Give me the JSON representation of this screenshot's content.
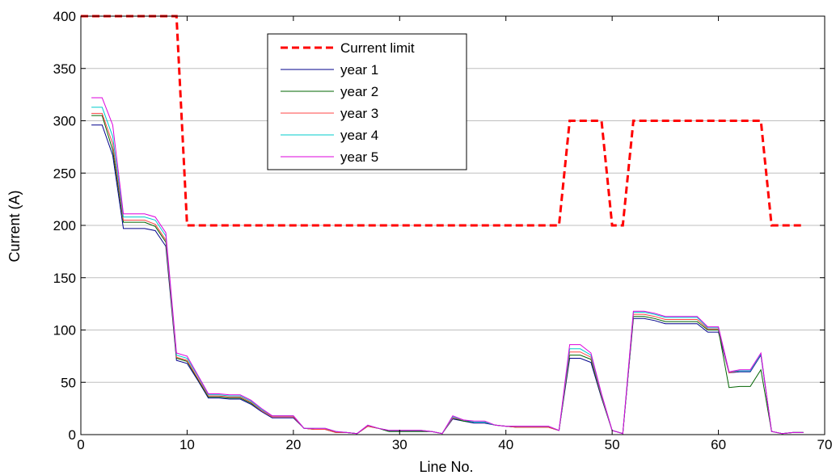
{
  "chart_data": {
    "type": "line",
    "title": "",
    "xlabel": "Line No.",
    "ylabel": "Current (A)",
    "xlim": [
      0,
      70
    ],
    "ylim": [
      0,
      400
    ],
    "xticks": [
      "0",
      "10",
      "20",
      "30",
      "40",
      "50",
      "60",
      "70"
    ],
    "yticks": [
      "0",
      "50",
      "100",
      "150",
      "200",
      "250",
      "300",
      "350",
      "400"
    ],
    "grid": "horizontal",
    "legend_position": "top-center",
    "x": [
      1,
      2,
      3,
      4,
      5,
      6,
      7,
      8,
      9,
      10,
      11,
      12,
      13,
      14,
      15,
      16,
      17,
      18,
      19,
      20,
      21,
      22,
      23,
      24,
      25,
      26,
      27,
      28,
      29,
      30,
      31,
      32,
      33,
      34,
      35,
      36,
      37,
      38,
      39,
      40,
      41,
      42,
      43,
      44,
      45,
      46,
      47,
      48,
      49,
      50,
      51,
      52,
      53,
      54,
      55,
      56,
      57,
      58,
      59,
      60,
      61,
      62,
      63,
      64,
      65,
      66,
      67,
      68
    ],
    "series": [
      {
        "name": "Current limit",
        "color": "#ff0000",
        "dashed": true,
        "points": [
          [
            0,
            400
          ],
          [
            9,
            400
          ],
          [
            10,
            200
          ],
          [
            45,
            200
          ],
          [
            46,
            300
          ],
          [
            49,
            300
          ],
          [
            50,
            200
          ],
          [
            51,
            200
          ],
          [
            52,
            300
          ],
          [
            64,
            300
          ],
          [
            65,
            200
          ],
          [
            68,
            200
          ]
        ]
      },
      {
        "name": "year 1",
        "color": "#00008b",
        "values": [
          296,
          296,
          267,
          197,
          197,
          197,
          195,
          180,
          71,
          68,
          52,
          35,
          35,
          34,
          34,
          29,
          22,
          16,
          16,
          16,
          6,
          5,
          5,
          2,
          2,
          1,
          8,
          6,
          3,
          3,
          3,
          3,
          3,
          1,
          15,
          13,
          11,
          11,
          9,
          8,
          7,
          7,
          7,
          7,
          4,
          73,
          73,
          69,
          35,
          4,
          1,
          111,
          111,
          109,
          106,
          106,
          106,
          106,
          98,
          98,
          59,
          60,
          60,
          76,
          3,
          1,
          2,
          2
        ]
      },
      {
        "name": "year 2",
        "color": "#006400",
        "values": [
          305,
          305,
          272,
          203,
          203,
          203,
          199,
          184,
          73,
          70,
          53,
          36,
          36,
          35,
          35,
          30,
          23,
          17,
          17,
          17,
          6,
          5,
          5,
          2,
          2,
          1,
          8,
          6,
          3,
          3,
          3,
          3,
          3,
          1,
          16,
          13,
          12,
          12,
          9,
          8,
          7,
          7,
          7,
          7,
          4,
          76,
          76,
          72,
          36,
          4,
          1,
          113,
          113,
          111,
          108,
          108,
          108,
          108,
          100,
          100,
          45,
          46,
          46,
          62,
          3,
          1,
          2,
          2
        ]
      },
      {
        "name": "year 3",
        "color": "#ff4444",
        "values": [
          307,
          307,
          278,
          205,
          205,
          205,
          201,
          186,
          74,
          71,
          54,
          37,
          37,
          36,
          36,
          31,
          23,
          17,
          17,
          17,
          6,
          5,
          5,
          2,
          2,
          1,
          8,
          6,
          4,
          4,
          4,
          4,
          3,
          1,
          16,
          14,
          12,
          12,
          9,
          8,
          7,
          7,
          7,
          7,
          4,
          79,
          79,
          74,
          37,
          4,
          1,
          115,
          115,
          113,
          110,
          110,
          110,
          110,
          101,
          101,
          59,
          61,
          61,
          77,
          3,
          1,
          2,
          2
        ]
      },
      {
        "name": "year 4",
        "color": "#00cccc",
        "values": [
          313,
          313,
          285,
          208,
          208,
          208,
          205,
          190,
          76,
          73,
          56,
          38,
          38,
          37,
          37,
          32,
          24,
          18,
          18,
          18,
          6,
          6,
          6,
          3,
          2,
          1,
          9,
          6,
          4,
          4,
          4,
          4,
          3,
          1,
          17,
          14,
          12,
          12,
          9,
          8,
          8,
          8,
          8,
          8,
          4,
          82,
          82,
          76,
          38,
          4,
          1,
          117,
          117,
          115,
          112,
          112,
          112,
          112,
          102,
          102,
          60,
          61,
          61,
          77,
          3,
          1,
          2,
          2
        ]
      },
      {
        "name": "year 5",
        "color": "#dd00dd",
        "values": [
          322,
          322,
          296,
          211,
          211,
          211,
          208,
          193,
          78,
          75,
          57,
          39,
          39,
          38,
          38,
          33,
          25,
          18,
          18,
          18,
          6,
          6,
          6,
          3,
          2,
          1,
          9,
          6,
          4,
          4,
          4,
          4,
          3,
          1,
          18,
          14,
          13,
          13,
          9,
          8,
          8,
          8,
          8,
          8,
          4,
          86,
          86,
          78,
          39,
          4,
          1,
          118,
          118,
          116,
          113,
          113,
          113,
          113,
          103,
          103,
          60,
          62,
          62,
          78,
          3,
          1,
          2,
          2
        ]
      }
    ]
  }
}
